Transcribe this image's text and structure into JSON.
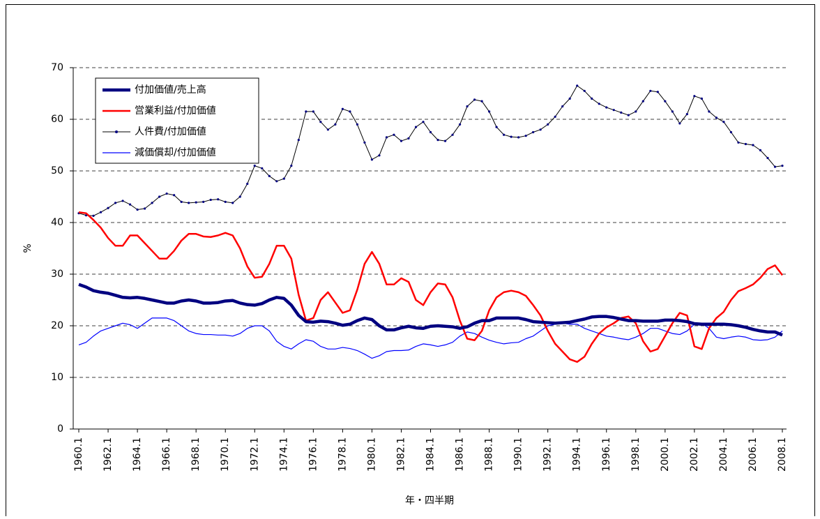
{
  "chart_data": {
    "type": "line",
    "x_label": "年・四半期",
    "y_label": "%",
    "categories": [
      "1960.1",
      null,
      null,
      null,
      "1962.1",
      null,
      null,
      null,
      "1964.1",
      null,
      null,
      null,
      "1966.1",
      null,
      null,
      null,
      "1968.1",
      null,
      null,
      null,
      "1970.1",
      null,
      null,
      null,
      "1972.1",
      null,
      null,
      null,
      "1974.1",
      null,
      null,
      null,
      "1976.1",
      null,
      null,
      null,
      "1978.1",
      null,
      null,
      null,
      "1980.1",
      null,
      null,
      null,
      "1982.1",
      null,
      null,
      null,
      "1984.1",
      null,
      null,
      null,
      "1986.1",
      null,
      null,
      null,
      "1988.1",
      null,
      null,
      null,
      "1990.1",
      null,
      null,
      null,
      "1992.1",
      null,
      null,
      null,
      "1994.1",
      null,
      null,
      null,
      "1996.1",
      null,
      null,
      null,
      "1998.1",
      null,
      null,
      null,
      "2000.1",
      null,
      null,
      null,
      "2002.1",
      null,
      null,
      null,
      "2004.1",
      null,
      null,
      null,
      "2006.1",
      null,
      null,
      null,
      "2008.1"
    ],
    "ylim": [
      0,
      70
    ],
    "yticks": [
      0,
      10,
      20,
      30,
      40,
      50,
      60,
      70
    ],
    "grid": true,
    "legend": "upper left",
    "series": [
      {
        "name": "付加価値/売上高",
        "color": "#000080",
        "width": 4.5,
        "values": [
          28,
          27.5,
          26.8,
          26.5,
          26.3,
          25.9,
          25.5,
          25.4,
          25.5,
          25.3,
          25,
          24.7,
          24.4,
          24.4,
          24.8,
          25,
          24.8,
          24.4,
          24.4,
          24.5,
          24.8,
          24.9,
          24.4,
          24.1,
          24,
          24.3,
          25,
          25.5,
          25.3,
          24,
          22,
          20.8,
          20.7,
          20.9,
          20.8,
          20.5,
          20.1,
          20.3,
          21,
          21.5,
          21.2,
          20,
          19.2,
          19.2,
          19.6,
          19.9,
          19.6,
          19.5,
          19.9,
          20,
          19.9,
          19.8,
          19.5,
          19.8,
          20.5,
          21,
          21,
          21.5,
          21.5,
          21.5,
          21.5,
          21.2,
          20.8,
          20.7,
          20.6,
          20.5,
          20.6,
          20.7,
          21,
          21.3,
          21.7,
          21.8,
          21.8,
          21.6,
          21.3,
          21,
          21,
          20.9,
          20.9,
          20.9,
          21.1,
          21.1,
          21,
          20.8,
          20.4,
          20.3,
          20.3,
          20.3,
          20.3,
          20.2,
          20,
          19.7,
          19.3,
          19,
          18.8,
          18.8,
          18.2
        ]
      },
      {
        "name": "営業利益/付加価値",
        "color": "#ff0000",
        "width": 2.5,
        "values": [
          42,
          41.8,
          40.5,
          39,
          37,
          35.5,
          35.5,
          37.5,
          37.5,
          36,
          34.5,
          33,
          33,
          34.5,
          36.5,
          37.8,
          37.8,
          37.3,
          37.2,
          37.5,
          38,
          37.5,
          35,
          31.5,
          29.3,
          29.5,
          32,
          35.5,
          35.5,
          33,
          26,
          21,
          21.5,
          25,
          26.5,
          24.5,
          22.5,
          23,
          27,
          32,
          34.3,
          32,
          28,
          28,
          29.2,
          28.5,
          25,
          24,
          26.5,
          28.2,
          28,
          25.5,
          21,
          17.5,
          17.2,
          19,
          23,
          25.5,
          26.5,
          26.8,
          26.5,
          25.8,
          24,
          22,
          19,
          16.5,
          15,
          13.5,
          13,
          14,
          16.5,
          18.5,
          19.7,
          20.5,
          21.5,
          21.8,
          20.5,
          17,
          15,
          15.5,
          18,
          20.5,
          22.5,
          22,
          16,
          15.5,
          19.5,
          21.5,
          22.7,
          25,
          26.7,
          27.3,
          28,
          29.3,
          31,
          31.7,
          29.8
        ]
      },
      {
        "name": "人件費/付加価値",
        "color": "#000000",
        "marker_color": "#000080",
        "markers": true,
        "width": 1,
        "values": [
          41.8,
          41.4,
          41.3,
          42,
          42.8,
          43.8,
          44.2,
          43.5,
          42.5,
          42.7,
          43.8,
          45,
          45.6,
          45.3,
          44,
          43.8,
          43.9,
          44,
          44.4,
          44.5,
          44,
          43.8,
          45,
          47.5,
          51,
          50.5,
          49,
          48,
          48.5,
          51,
          56,
          61.5,
          61.5,
          59.5,
          58,
          59,
          62,
          61.5,
          59,
          55.5,
          52.2,
          53,
          56.5,
          57,
          55.8,
          56.3,
          58.5,
          59.5,
          57.5,
          56,
          55.8,
          57,
          59,
          62.5,
          63.8,
          63.5,
          61.5,
          58.5,
          57,
          56.6,
          56.5,
          56.8,
          57.5,
          58,
          59,
          60.5,
          62.5,
          64,
          66.5,
          65.5,
          64,
          63,
          62.3,
          61.8,
          61.3,
          60.8,
          61.5,
          63.5,
          65.5,
          65.3,
          63.5,
          61.5,
          59.2,
          61,
          64.5,
          64,
          61.5,
          60.3,
          59.5,
          57.5,
          55.5,
          55.2,
          55,
          54,
          52.5,
          50.8,
          51
        ]
      },
      {
        "name": "減価償却/付加価値",
        "color": "#0000ff",
        "width": 1.2,
        "values": [
          16.3,
          16.8,
          18,
          19,
          19.5,
          20,
          20.5,
          20.2,
          19.5,
          20.5,
          21.5,
          21.5,
          21.5,
          21,
          20,
          19,
          18.5,
          18.3,
          18.3,
          18.2,
          18.2,
          18,
          18.5,
          19.5,
          20,
          20,
          19,
          17,
          16,
          15.5,
          16.5,
          17.3,
          17,
          16,
          15.5,
          15.5,
          15.8,
          15.6,
          15.2,
          14.5,
          13.7,
          14.2,
          15,
          15.2,
          15.2,
          15.3,
          16,
          16.5,
          16.3,
          16,
          16.3,
          16.8,
          18,
          18.8,
          18.5,
          17.8,
          17.2,
          16.8,
          16.5,
          16.7,
          16.8,
          17.5,
          18,
          19,
          20,
          20.3,
          20.5,
          20.3,
          20.3,
          19.5,
          19,
          18.5,
          18,
          17.8,
          17.5,
          17.3,
          17.8,
          18.5,
          19.5,
          19.5,
          19,
          18.5,
          18.3,
          19,
          20.3,
          20.5,
          19.5,
          17.8,
          17.5,
          17.8,
          18,
          17.8,
          17.3,
          17.2,
          17.3,
          17.8,
          19
        ]
      }
    ]
  }
}
